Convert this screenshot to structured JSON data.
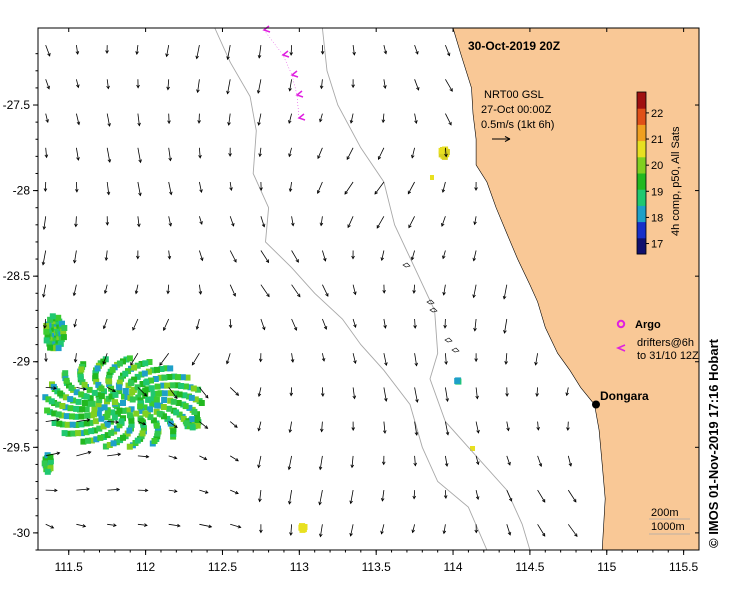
{
  "title": "30-Oct-2019 20Z",
  "current_legend": {
    "line1": "NRT00 GSL",
    "line2": "27-Oct 00:00Z",
    "line3": "0.5m/s (1kt 6h)"
  },
  "colorbar": {
    "label": "4h comp, p50, All Sats",
    "ticks": [
      "17",
      "18",
      "19",
      "20",
      "21",
      "22"
    ],
    "range": [
      16.6,
      22.8
    ],
    "colors": [
      "#10106e",
      "#1830c8",
      "#1ea0c8",
      "#20c870",
      "#22b820",
      "#80d020",
      "#e8e020",
      "#f0a020",
      "#e05018",
      "#a01010"
    ]
  },
  "argo": {
    "label": "Argo",
    "color": "#e020e0"
  },
  "drifters": {
    "line1": "drifters@6h",
    "line2": "to 31/10 12Z",
    "color": "#e020e0"
  },
  "place": {
    "name": "Dongara",
    "lon": 114.93,
    "lat": -29.25
  },
  "bathymetry": {
    "line1": "200m",
    "line2": "1000m",
    "color": "#a8a8a8"
  },
  "axes": {
    "x_ticks": [
      "111.5",
      "112",
      "112.5",
      "113",
      "113.5",
      "114",
      "114.5",
      "115",
      "115.5"
    ],
    "y_ticks": [
      "-27.5",
      "-28",
      "-28.5",
      "-29",
      "-29.5",
      "-30"
    ],
    "xlim": [
      111.3,
      115.6
    ],
    "ylim": [
      -30.1,
      -27.05
    ]
  },
  "land_color": "#f9c896",
  "credit": "© IMOS 01-Nov-2019 17:16 Hobart"
}
